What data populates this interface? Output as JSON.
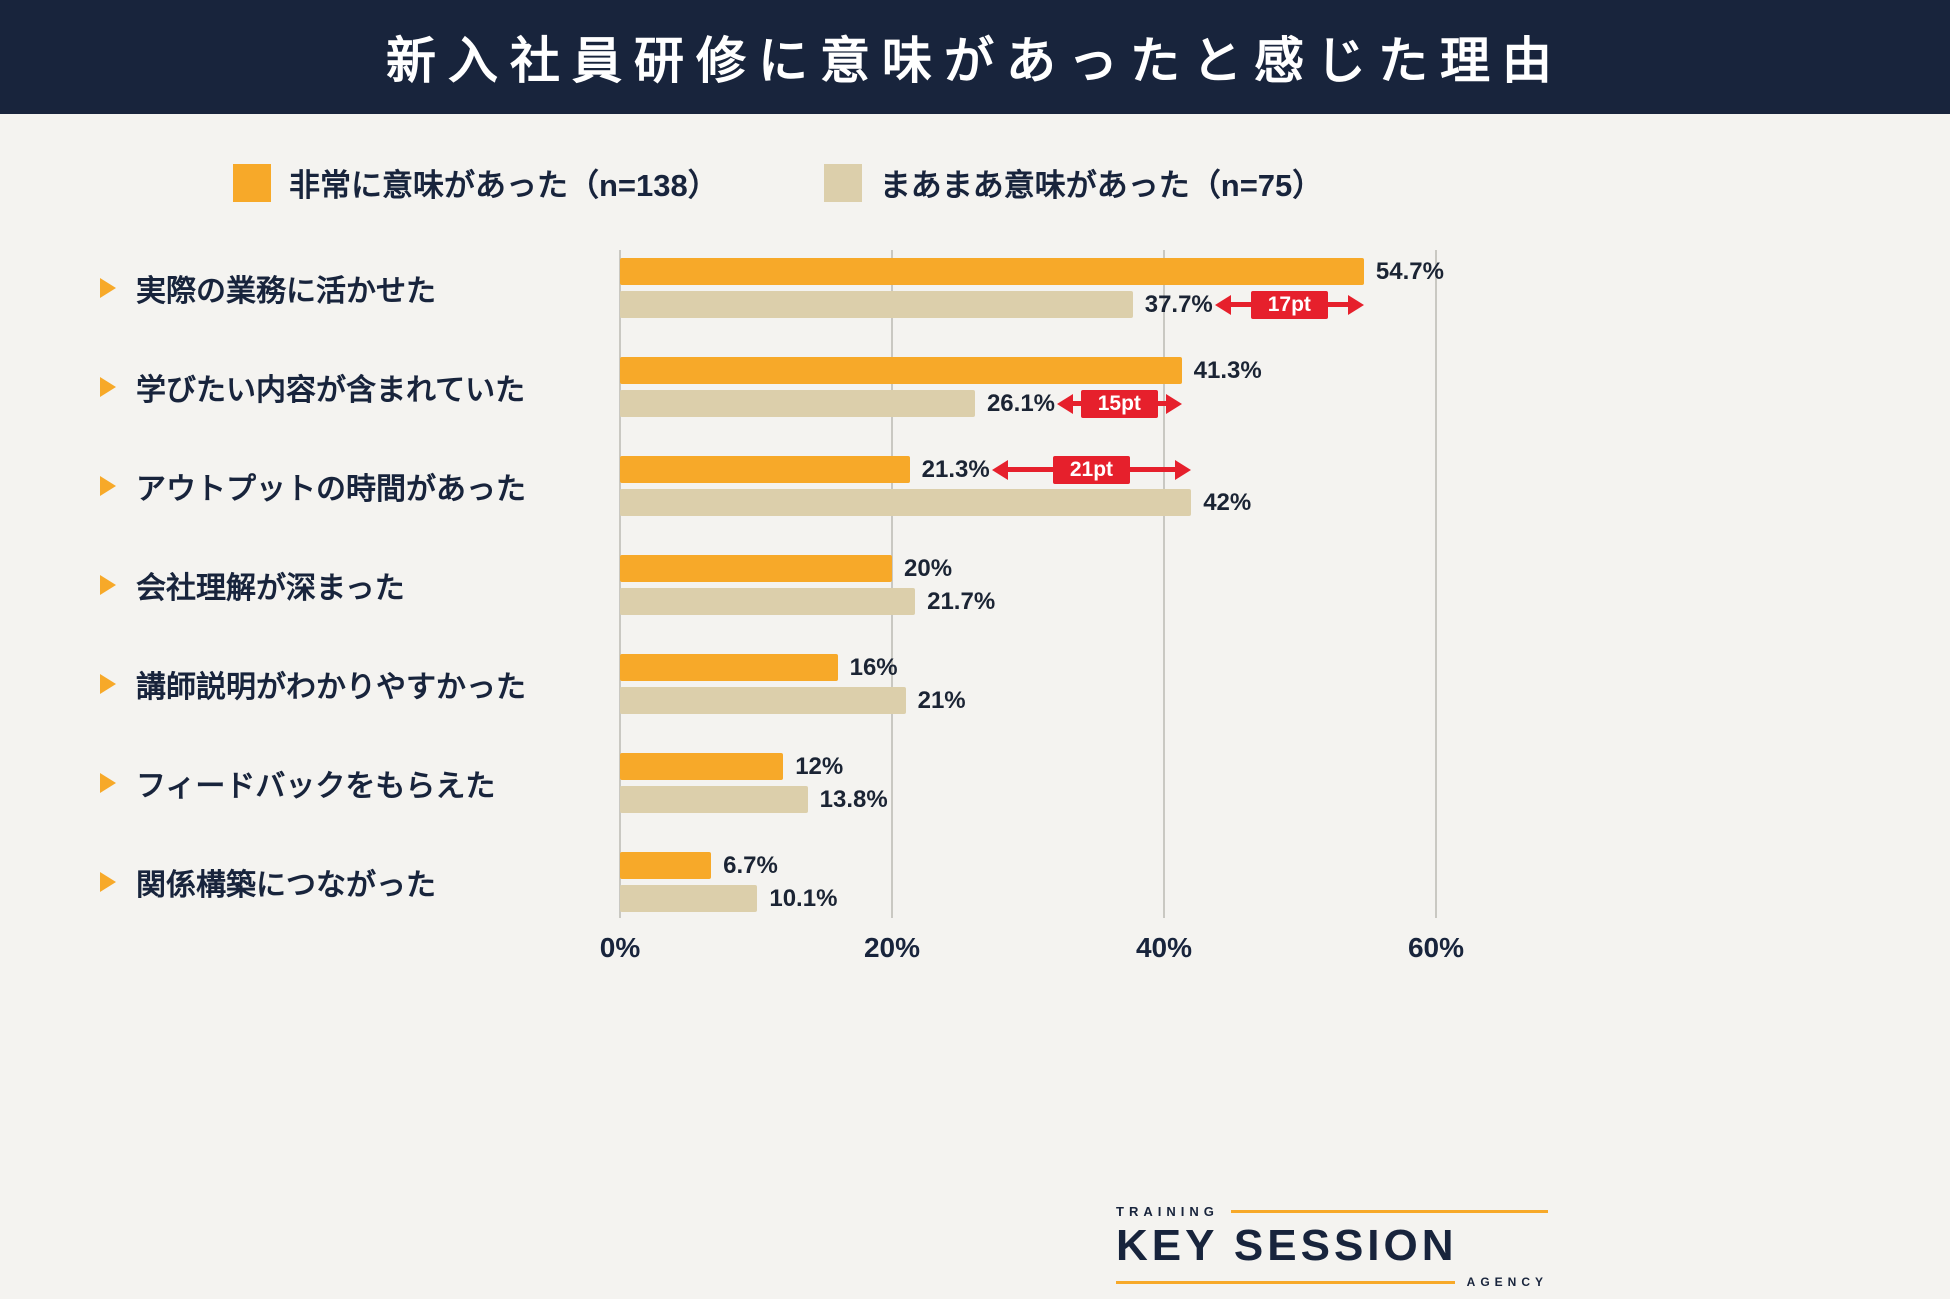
{
  "header": {
    "title": "新入社員研修に意味があったと感じた理由"
  },
  "legend": {
    "items": [
      {
        "label": "非常に意味があった（n=138）",
        "color": "#F7A929"
      },
      {
        "label": "まあまあ意味があった（n=75）",
        "color": "#DCCFAB"
      }
    ]
  },
  "chart_data": {
    "type": "bar",
    "orientation": "horizontal",
    "title": "新入社員研修に意味があったと感じた理由",
    "categories": [
      "実際の業務に活かせた",
      "学びたい内容が含まれていた",
      "アウトプットの時間があった",
      "会社理解が深まった",
      "講師説明がわかりやすかった",
      "フィードバックをもらえた",
      "関係構築につながった"
    ],
    "series": [
      {
        "name": "非常に意味があった（n=138）",
        "color": "#F7A929",
        "values": [
          54.7,
          41.3,
          21.3,
          20,
          16,
          12,
          6.7
        ],
        "value_labels": [
          "54.7%",
          "41.3%",
          "21.3%",
          "20%",
          "16%",
          "12%",
          "6.7%"
        ]
      },
      {
        "name": "まあまあ意味があった（n=75）",
        "color": "#DCCFAB",
        "values": [
          37.7,
          26.1,
          42,
          21.7,
          21,
          13.8,
          10.1
        ],
        "value_labels": [
          "37.7%",
          "26.1%",
          "42%",
          "21.7%",
          "21%",
          "13.8%",
          "10.1%"
        ]
      }
    ],
    "diff_annotations": [
      {
        "category_index": 0,
        "label": "17pt"
      },
      {
        "category_index": 1,
        "label": "15pt"
      },
      {
        "category_index": 2,
        "label": "21pt"
      }
    ],
    "x_ticks": [
      "0%",
      "20%",
      "40%",
      "60%"
    ],
    "xlim": [
      0,
      60
    ],
    "grid": true,
    "legend_position": "top"
  },
  "footer_logo": {
    "top": "TRAINING",
    "main": "KEY SESSION",
    "bottom": "AGENCY"
  },
  "colors": {
    "navy": "#18243C",
    "orange": "#F7A929",
    "tan": "#DCCFAB",
    "red": "#E6202C",
    "background": "#F4F3F0",
    "grid": "#C9C8C2"
  }
}
